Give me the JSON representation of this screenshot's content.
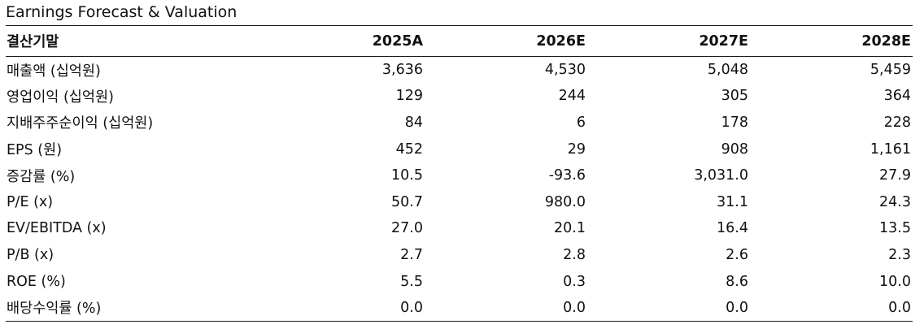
{
  "title": "Earnings Forecast & Valuation",
  "table": {
    "header": {
      "label": "결산기말",
      "years": [
        "2025A",
        "2026E",
        "2027E",
        "2028E"
      ]
    },
    "rows": [
      {
        "label": "매출액 (십억원)",
        "values": [
          "3,636",
          "4,530",
          "5,048",
          "5,459"
        ]
      },
      {
        "label": "영업이익 (십억원)",
        "values": [
          "129",
          "244",
          "305",
          "364"
        ]
      },
      {
        "label": "지배주주순이익 (십억원)",
        "values": [
          "84",
          "6",
          "178",
          "228"
        ]
      },
      {
        "label": "EPS (원)",
        "values": [
          "452",
          "29",
          "908",
          "1,161"
        ]
      },
      {
        "label": "증감률 (%)",
        "values": [
          "10.5",
          "-93.6",
          "3,031.0",
          "27.9"
        ]
      },
      {
        "label": "P/E (x)",
        "values": [
          "50.7",
          "980.0",
          "31.1",
          "24.3"
        ]
      },
      {
        "label": "EV/EBITDA (x)",
        "values": [
          "27.0",
          "20.1",
          "16.4",
          "13.5"
        ]
      },
      {
        "label": "P/B (x)",
        "values": [
          "2.7",
          "2.8",
          "2.6",
          "2.3"
        ]
      },
      {
        "label": "ROE (%)",
        "values": [
          "5.5",
          "0.3",
          "8.6",
          "10.0"
        ]
      },
      {
        "label": "배당수익률 (%)",
        "values": [
          "0.0",
          "0.0",
          "0.0",
          "0.0"
        ]
      }
    ]
  }
}
